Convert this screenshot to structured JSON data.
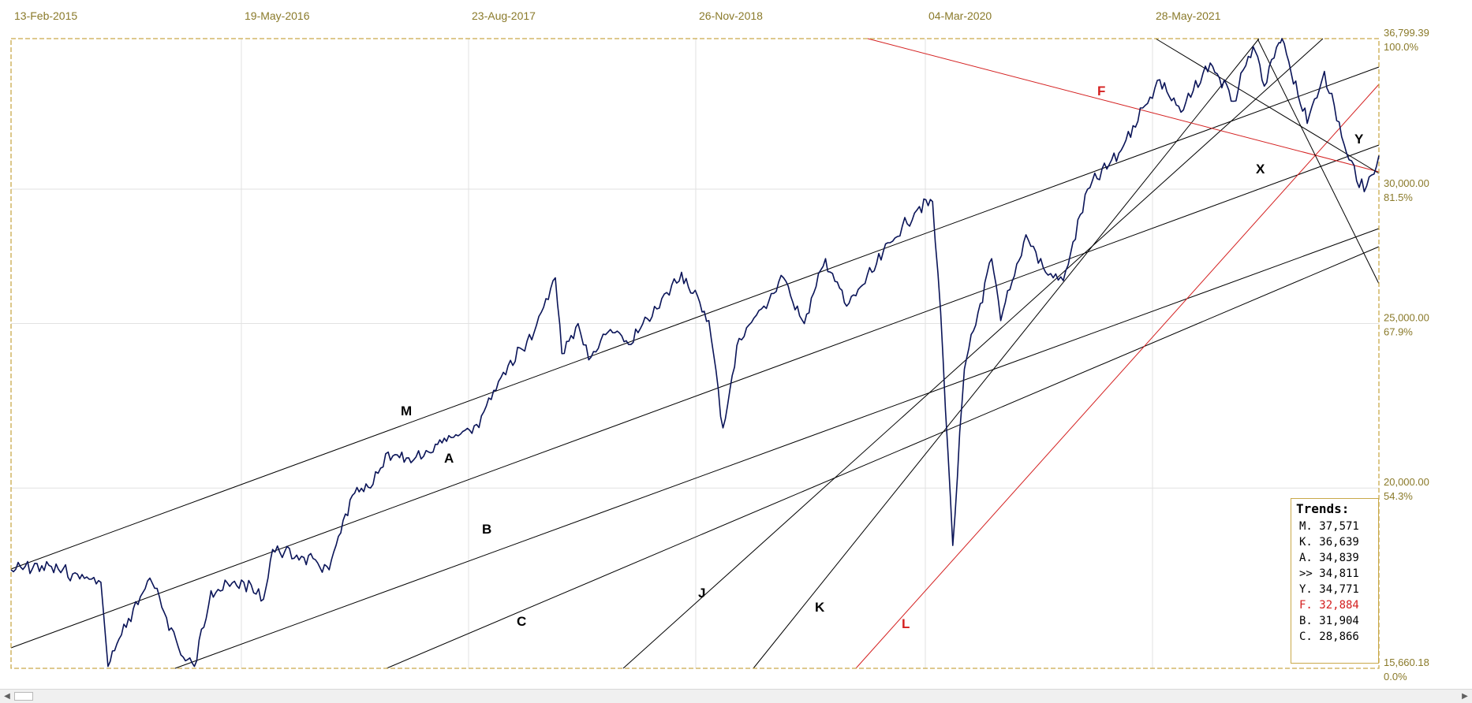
{
  "x_axis_labels": [
    "13-Feb-2015",
    "19-May-2016",
    "23-Aug-2017",
    "26-Nov-2018",
    "04-Mar-2020",
    "28-May-2021"
  ],
  "y_axis_labels": [
    {
      "value": "36,799.39",
      "percent": "100.0%"
    },
    {
      "value": "30,000.00",
      "percent": "81.5%"
    },
    {
      "value": "25,000.00",
      "percent": "67.9%"
    },
    {
      "value": "20,000.00",
      "percent": "54.3%"
    },
    {
      "value": "15,660.18",
      "percent": "0.0%"
    }
  ],
  "trends_box": {
    "title": "Trends:",
    "rows": [
      {
        "text": "M. 37,571",
        "color": "black"
      },
      {
        "text": "K. 36,639",
        "color": "black"
      },
      {
        "text": "A. 34,839",
        "color": "black"
      },
      {
        "text": ">> 34,811",
        "color": "black"
      },
      {
        "text": "Y. 34,771",
        "color": "black"
      },
      {
        "text": "F. 32,884",
        "color": "red"
      },
      {
        "text": "B. 31,904",
        "color": "black"
      },
      {
        "text": "C. 28,866",
        "color": "black"
      }
    ]
  },
  "trend_line_labels": [
    "M",
    "A",
    "B",
    "C",
    "J",
    "K",
    "L",
    "F",
    "X",
    "Y"
  ],
  "colors": {
    "price": "#0a1458",
    "trendline": "#000000",
    "red_trendline": "#d42020",
    "frame": "#c9a94a",
    "labels": "#8a7a2a"
  },
  "chart_data": {
    "type": "line",
    "y_scale": "log",
    "ylim": [
      15660.18,
      36799.39
    ],
    "xlim": [
      "2015-02-13",
      "2022-07-15"
    ],
    "grid": true,
    "series": [
      {
        "x": [
          "2015-02-13",
          "2015-04-15",
          "2015-06-15",
          "2015-08-10",
          "2015-08-24",
          "2015-09-15",
          "2015-11-15",
          "2016-01-20",
          "2016-02-11",
          "2016-03-15",
          "2016-05-19",
          "2016-06-27",
          "2016-07-15",
          "2016-09-15",
          "2016-11-04",
          "2016-12-20",
          "2017-01-25",
          "2017-03-01",
          "2017-04-15",
          "2017-05-20",
          "2017-06-20",
          "2017-08-23",
          "2017-10-15",
          "2017-12-15",
          "2018-01-26",
          "2018-02-08",
          "2018-03-12",
          "2018-04-02",
          "2018-05-15",
          "2018-06-20",
          "2018-08-15",
          "2018-10-03",
          "2018-11-26",
          "2018-12-24",
          "2019-01-25",
          "2019-03-15",
          "2019-04-23",
          "2019-06-03",
          "2019-07-15",
          "2019-08-26",
          "2019-10-15",
          "2019-11-20",
          "2020-01-17",
          "2020-02-12",
          "2020-02-28",
          "2020-03-23",
          "2020-04-15",
          "2020-06-08",
          "2020-06-26",
          "2020-08-15",
          "2020-09-23",
          "2020-10-28",
          "2020-12-15",
          "2021-02-15",
          "2021-03-15",
          "2021-05-07",
          "2021-06-18",
          "2021-08-15",
          "2021-09-30",
          "2021-11-08",
          "2021-11-30",
          "2021-12-29",
          "2022-01-04",
          "2022-02-23",
          "2022-03-29",
          "2022-05-12",
          "2022-06-16",
          "2022-07-15"
        ],
        "y": [
          17900,
          18000,
          17800,
          17600,
          15700,
          16300,
          17700,
          15900,
          15700,
          17400,
          17600,
          17200,
          18400,
          18200,
          17900,
          19800,
          20000,
          21000,
          20700,
          21000,
          21400,
          21800,
          23400,
          24700,
          26600,
          24000,
          25000,
          23800,
          24800,
          24300,
          25500,
          26800,
          25100,
          21700,
          24500,
          25600,
          26600,
          25000,
          27300,
          25600,
          26800,
          27900,
          29300,
          29500,
          25400,
          18500,
          23500,
          27300,
          25100,
          28200,
          26800,
          26500,
          30000,
          31500,
          32700,
          34800,
          33300,
          35600,
          33800,
          36400,
          34500,
          36600,
          36800,
          32800,
          35200,
          31500,
          29900,
          31400
        ]
      }
    ]
  }
}
